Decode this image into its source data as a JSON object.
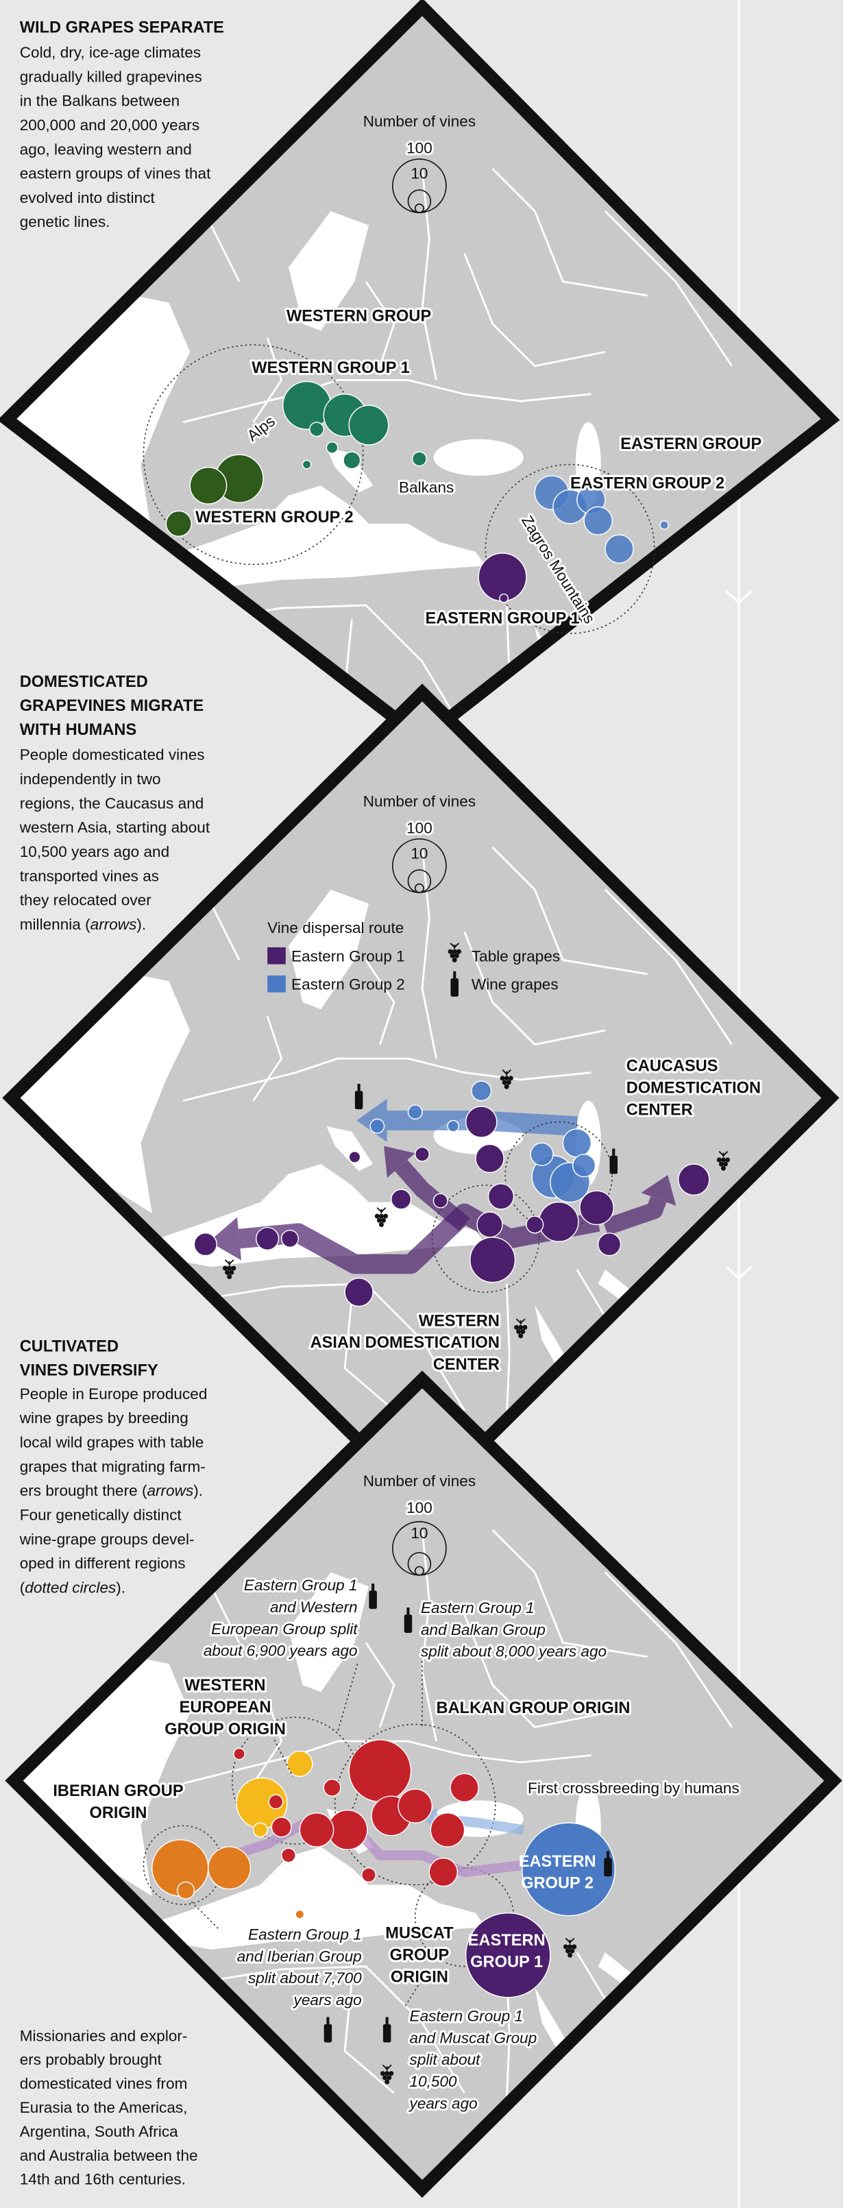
{
  "panels": [
    {
      "title": [
        "WILD GRAPES SEPARATE"
      ],
      "body": [
        "Cold, dry, ice-age climates",
        "gradually killed grapevines",
        "in the Balkans between",
        "200,000 and 20,000 years",
        "ago, leaving western and",
        "eastern groups of vines that",
        "evolved into distinct",
        "genetic lines."
      ],
      "legend": {
        "title": "Number of vines",
        "ticks": [
          "100",
          "10"
        ]
      },
      "labels": [
        [
          "WESTERN GROUP"
        ],
        [
          "WESTERN GROUP 1"
        ],
        [
          "WESTERN GROUP 2"
        ],
        [
          "Alps"
        ],
        [
          "Balkans"
        ],
        [
          "EASTERN GROUP"
        ],
        [
          "EASTERN GROUP 2"
        ],
        [
          "Zagros Mountains"
        ],
        [
          "EASTERN GROUP 1"
        ]
      ]
    },
    {
      "title": [
        "DOMESTICATED",
        "GRAPEVINES MIGRATE",
        "WITH HUMANS"
      ],
      "body": [
        "People domesticated vines",
        "independently in two",
        "regions, the Caucasus and",
        "western Asia, starting about",
        "10,500 years ago and",
        "transported vines as",
        "they relocated over",
        [
          "millennia (",
          "arrows",
          ")."
        ]
      ],
      "legend": {
        "title": "Number of vines",
        "ticks": [
          "100",
          "10"
        ]
      },
      "route_legend": {
        "title": "Vine dispersal route",
        "routes": [
          {
            "name": "Eastern Group 1",
            "color": "#4b1f6b"
          },
          {
            "name": "Eastern Group 2",
            "color": "#4a7ac4"
          }
        ],
        "icons": [
          "Table grapes",
          "Wine grapes"
        ]
      },
      "labels": [
        [
          "CAUCASUS",
          "DOMESTICATION",
          "CENTER"
        ],
        [
          "WESTERN",
          "ASIAN DOMESTICATION",
          "CENTER"
        ]
      ]
    },
    {
      "title": [
        "CULTIVATED",
        "VINES DIVERSIFY"
      ],
      "body": [
        "People in Europe produced",
        "wine grapes by breeding",
        "local wild grapes with table",
        "grapes that migrating farm-",
        [
          "ers brought there (",
          "arrows",
          ")."
        ],
        "Four genetically distinct",
        "wine-grape groups devel-",
        "oped in different regions",
        [
          "(",
          "dotted circles",
          ")."
        ]
      ],
      "legend": {
        "title": "Number of vines",
        "ticks": [
          "100",
          "10"
        ]
      },
      "labels": [
        [
          "Eastern Group 1",
          "and Western",
          "European Group split",
          "about 6,900 years ago"
        ],
        [
          "Eastern Group 1",
          "and Balkan Group",
          "split about 8,000 years ago"
        ],
        [
          "WESTERN",
          "EUROPEAN",
          "GROUP ORIGIN"
        ],
        [
          "BALKAN GROUP ORIGIN"
        ],
        [
          "IBERIAN GROUP",
          "ORIGIN"
        ],
        [
          "First crossbreeding by humans"
        ],
        [
          "EASTERN",
          "GROUP 2"
        ],
        [
          "EASTERN",
          "GROUP 1"
        ],
        [
          "MUSCAT",
          "GROUP",
          "ORIGIN"
        ],
        [
          "Eastern Group 1",
          "and Iberian Group",
          "split about 7,700",
          "years ago"
        ],
        [
          "Eastern Group 1",
          "and Muscat Group",
          "split about",
          "10,500",
          "years ago"
        ]
      ],
      "footer": [
        "Missionaries and explor-",
        "ers probably brought",
        "domesticated vines from",
        "Eurasia to the Americas,",
        "Argentina, South Africa",
        "and Australia between the",
        "14th and 16th centuries."
      ]
    }
  ]
}
